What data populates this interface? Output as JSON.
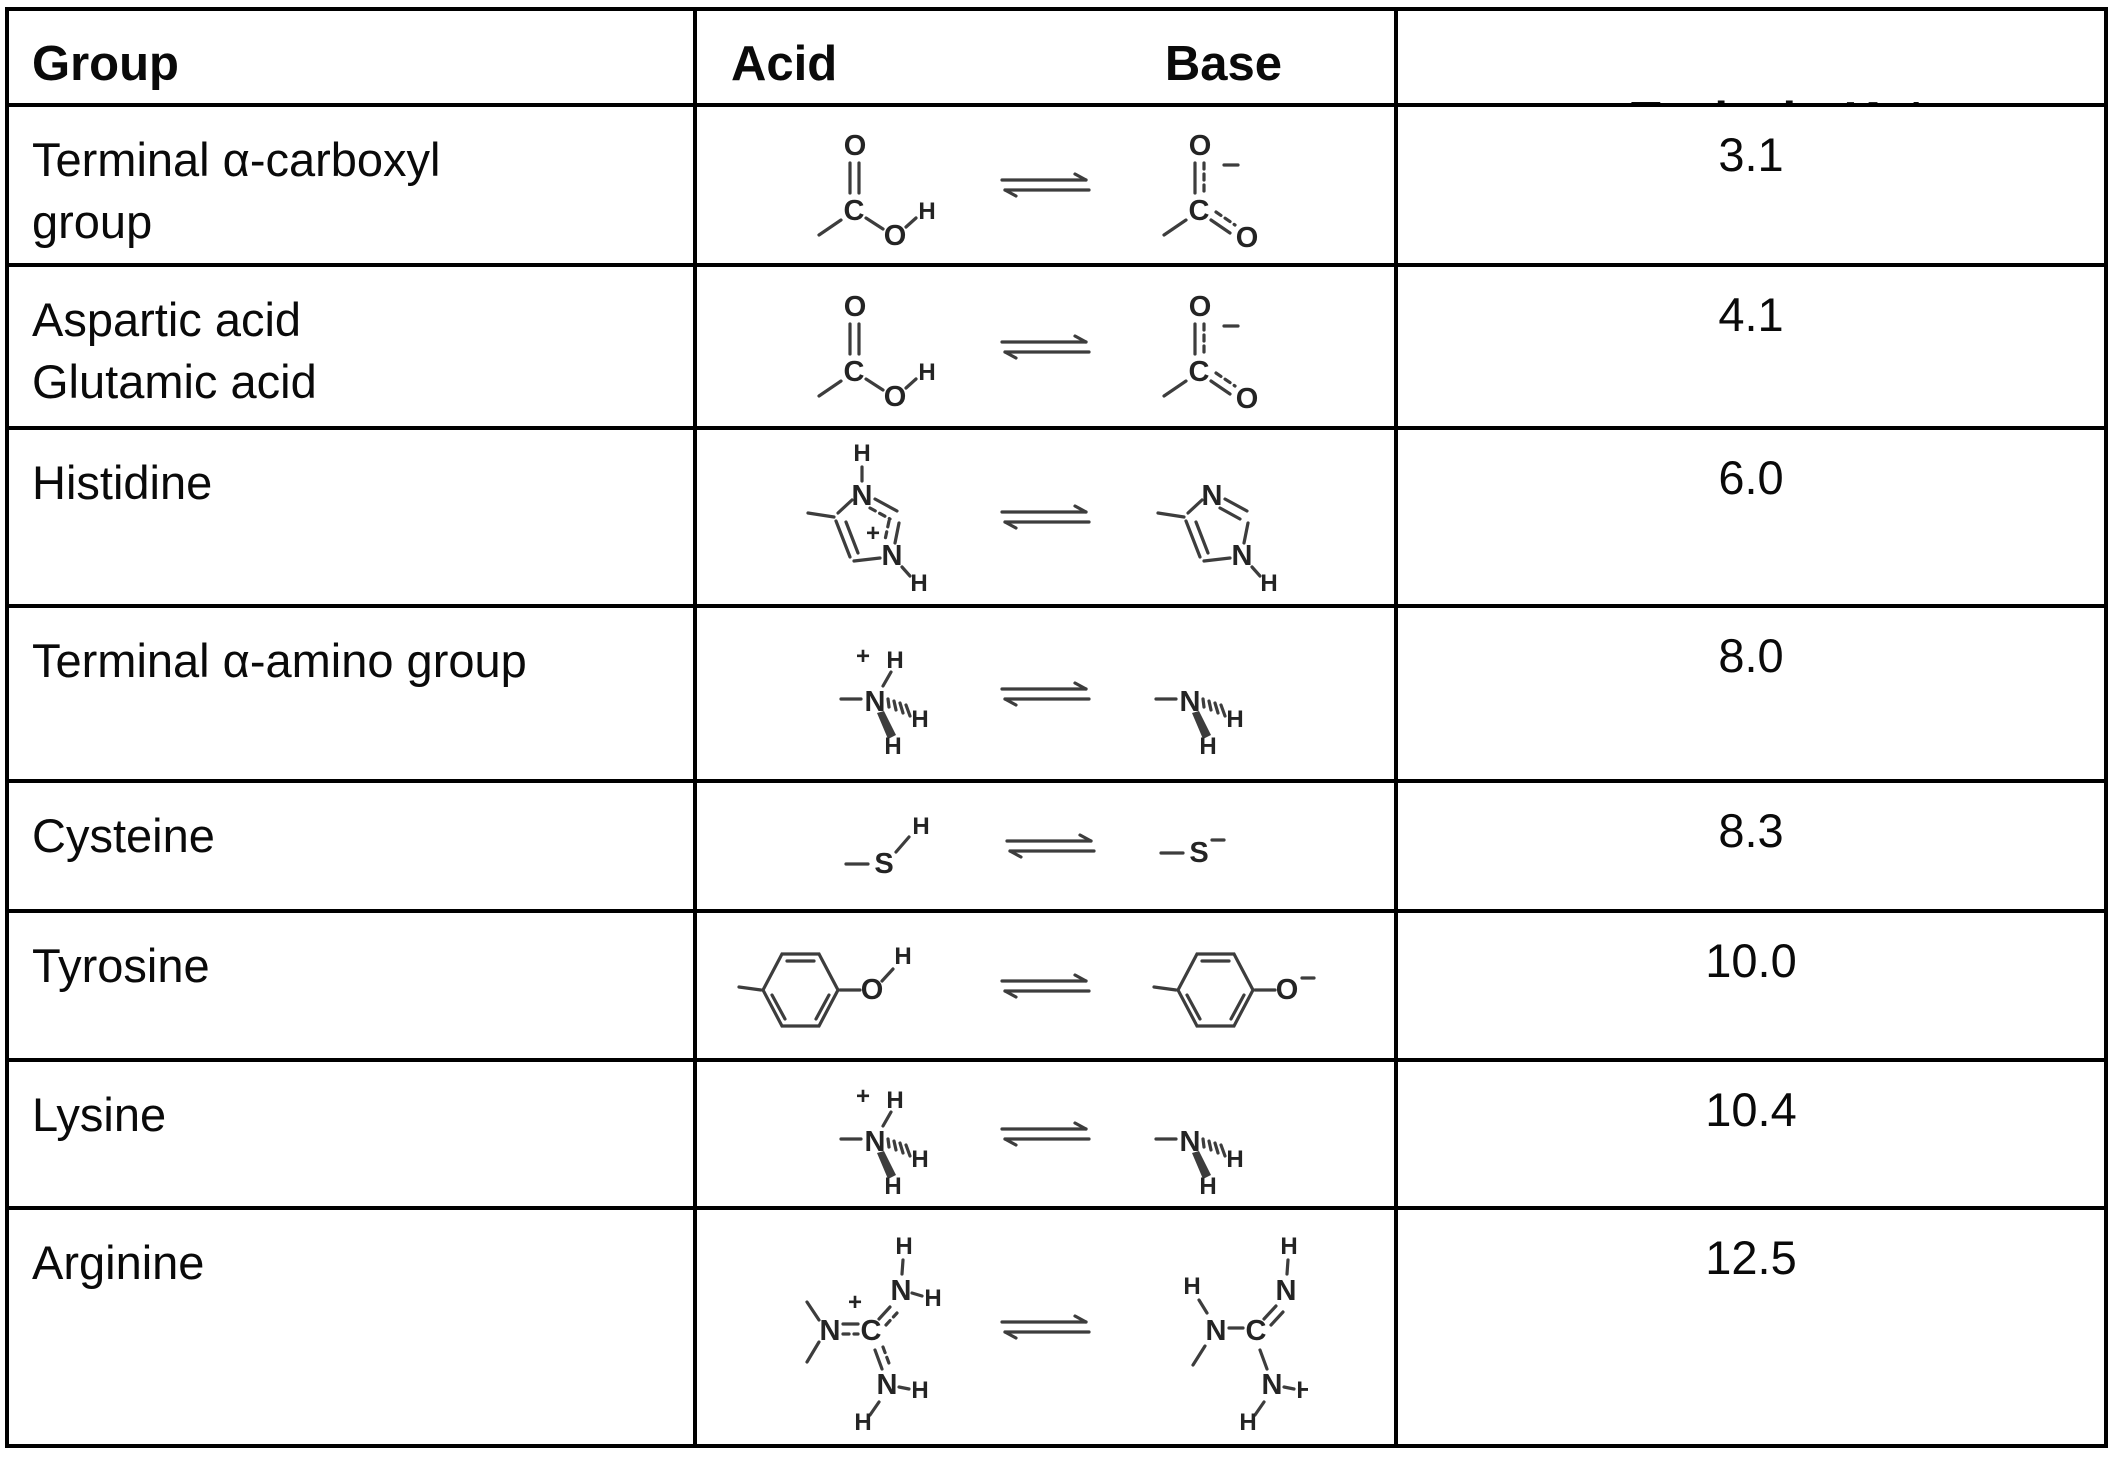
{
  "header": {
    "group": "Group",
    "acid": "Acid",
    "base": "Base",
    "pka": {
      "prefix": "Typical p",
      "k": "K",
      "sub": "a",
      "star": " *"
    }
  },
  "rows": [
    {
      "group": "Terminal α-carboxyl\ngroup",
      "structure": "carboxyl",
      "pka": "3.1"
    },
    {
      "group": "Aspartic acid\nGlutamic acid",
      "structure": "carboxyl",
      "pka": "4.1"
    },
    {
      "group": "Histidine",
      "structure": "imidazole",
      "pka": "6.0"
    },
    {
      "group": "Terminal α-amino group",
      "structure": "ammonium",
      "pka": "8.0"
    },
    {
      "group": "Cysteine",
      "structure": "thiol",
      "pka": "8.3"
    },
    {
      "group": "Tyrosine",
      "structure": "phenol",
      "pka": "10.0"
    },
    {
      "group": "Lysine",
      "structure": "ammonium",
      "pka": "10.4"
    },
    {
      "group": "Arginine",
      "structure": "guanidinium",
      "pka": "12.5"
    }
  ]
}
